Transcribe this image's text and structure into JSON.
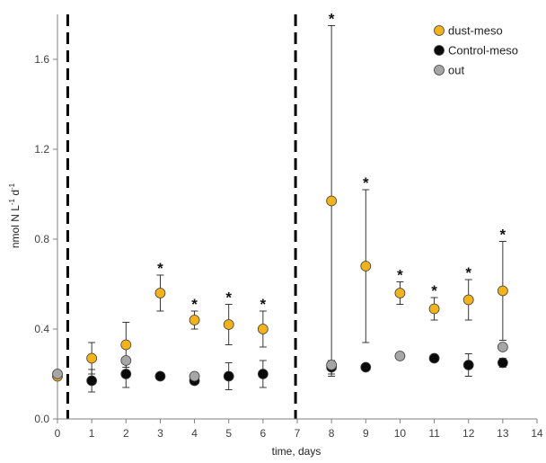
{
  "chart_data": {
    "type": "scatter",
    "xlabel": "time, days",
    "ylabel_main": "nmol N L",
    "ylabel_sup1": "-1",
    "ylabel_mid": " d",
    "ylabel_sup2": "-1",
    "xlim": [
      0,
      14
    ],
    "ylim": [
      0,
      1.8
    ],
    "xticks": [
      0,
      1,
      2,
      3,
      4,
      5,
      6,
      7,
      8,
      9,
      10,
      11,
      12,
      13,
      14
    ],
    "yticks": [
      0.0,
      0.4,
      0.8,
      1.2,
      1.6
    ],
    "ytick_labels": [
      "0.0",
      "0.4",
      "0.8",
      "1.2",
      "1.6"
    ],
    "grid": false,
    "legend_position": "top-right",
    "vertical_dashed_lines_x": [
      0.3,
      6.95
    ],
    "series": [
      {
        "name": "dust-meso",
        "color": "#f2b21c",
        "points": [
          {
            "x": 0,
            "y": 0.19,
            "err": 0.0,
            "star": false
          },
          {
            "x": 1,
            "y": 0.27,
            "err": 0.07,
            "star": false
          },
          {
            "x": 2,
            "y": 0.33,
            "err": 0.1,
            "star": false
          },
          {
            "x": 3,
            "y": 0.56,
            "err": 0.08,
            "star": true
          },
          {
            "x": 4,
            "y": 0.44,
            "err": 0.04,
            "star": true
          },
          {
            "x": 5,
            "y": 0.42,
            "err": 0.09,
            "star": true
          },
          {
            "x": 6,
            "y": 0.4,
            "err": 0.08,
            "star": true
          },
          {
            "x": 8,
            "y": 0.97,
            "err": 0.78,
            "star": true
          },
          {
            "x": 9,
            "y": 0.68,
            "err": 0.34,
            "star": true
          },
          {
            "x": 10,
            "y": 0.56,
            "err": 0.05,
            "star": true
          },
          {
            "x": 11,
            "y": 0.49,
            "err": 0.05,
            "star": true
          },
          {
            "x": 12,
            "y": 0.53,
            "err": 0.09,
            "star": true
          },
          {
            "x": 13,
            "y": 0.57,
            "err": 0.22,
            "star": true
          }
        ]
      },
      {
        "name": "Control-meso",
        "color": "#0a0a0a",
        "points": [
          {
            "x": 1,
            "y": 0.17,
            "err": 0.05
          },
          {
            "x": 2,
            "y": 0.2,
            "err": 0.06
          },
          {
            "x": 3,
            "y": 0.19,
            "err": 0.0
          },
          {
            "x": 4,
            "y": 0.17,
            "err": 0.01
          },
          {
            "x": 5,
            "y": 0.19,
            "err": 0.06
          },
          {
            "x": 6,
            "y": 0.2,
            "err": 0.06
          },
          {
            "x": 8,
            "y": 0.23,
            "err": 0.03
          },
          {
            "x": 9,
            "y": 0.23,
            "err": 0.0
          },
          {
            "x": 11,
            "y": 0.27,
            "err": 0.0
          },
          {
            "x": 12,
            "y": 0.24,
            "err": 0.05
          },
          {
            "x": 13,
            "y": 0.25,
            "err": 0.02
          }
        ]
      },
      {
        "name": "out",
        "color": "#a6a6a6",
        "points": [
          {
            "x": 0,
            "y": 0.2,
            "err": 0.0
          },
          {
            "x": 2,
            "y": 0.26,
            "err": 0.0
          },
          {
            "x": 4,
            "y": 0.19,
            "err": 0.0
          },
          {
            "x": 8,
            "y": 0.24,
            "err": 0.0
          },
          {
            "x": 10,
            "y": 0.28,
            "err": 0.0
          },
          {
            "x": 13,
            "y": 0.32,
            "err": 0.0
          }
        ]
      }
    ],
    "annotation_symbol": "*"
  }
}
